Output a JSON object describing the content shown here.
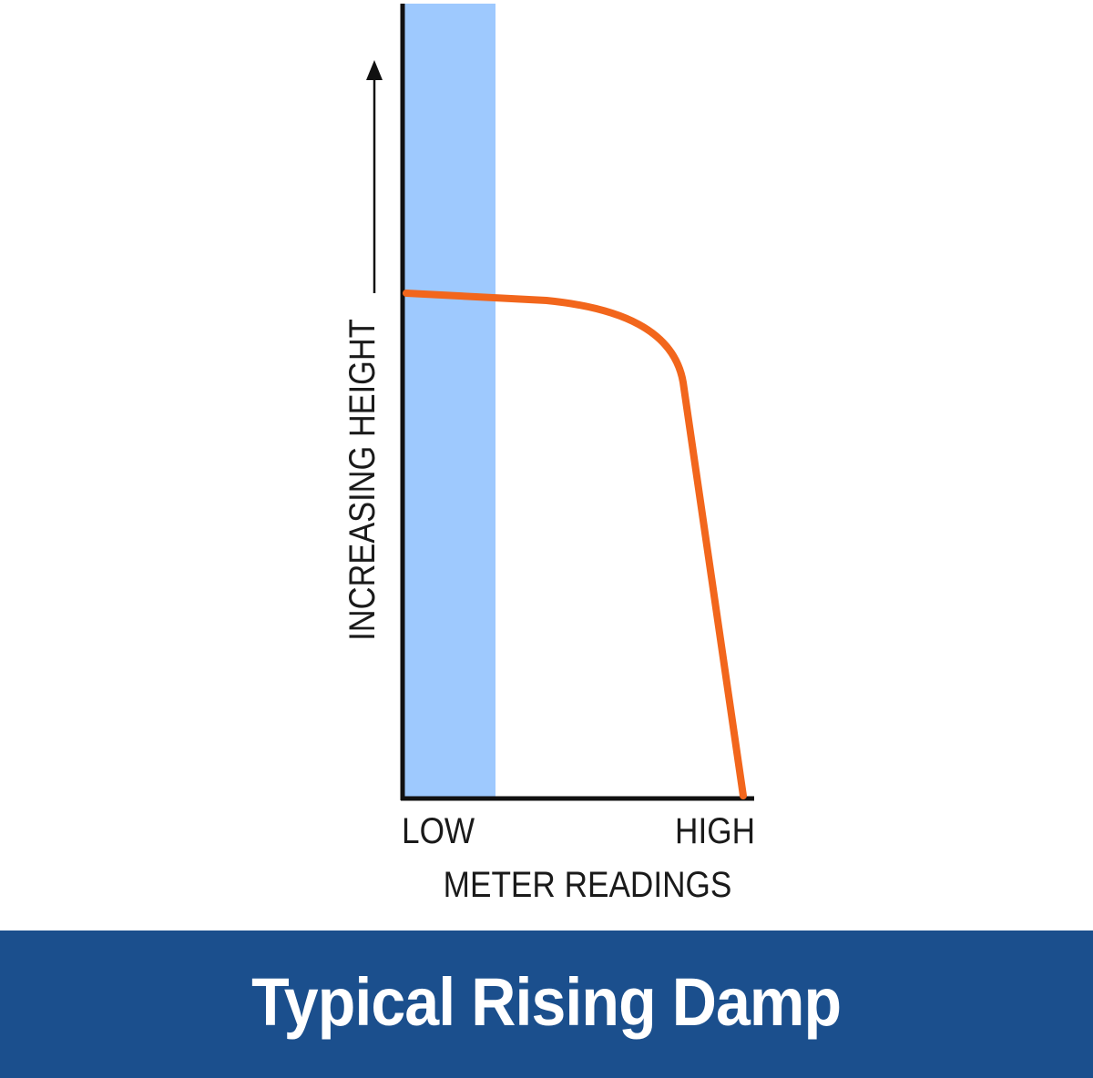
{
  "diagram": {
    "y_axis_label": "INCREASING HEIGHT",
    "x_axis_label": "METER READINGS",
    "x_low_label": "LOW",
    "x_high_label": "HIGH",
    "colors": {
      "low_band": "#9ec9fe",
      "curve": "#f2661c",
      "axis": "#111111"
    }
  },
  "banner": {
    "title": "Typical Rising Damp",
    "background": "#1b4f8d"
  }
}
